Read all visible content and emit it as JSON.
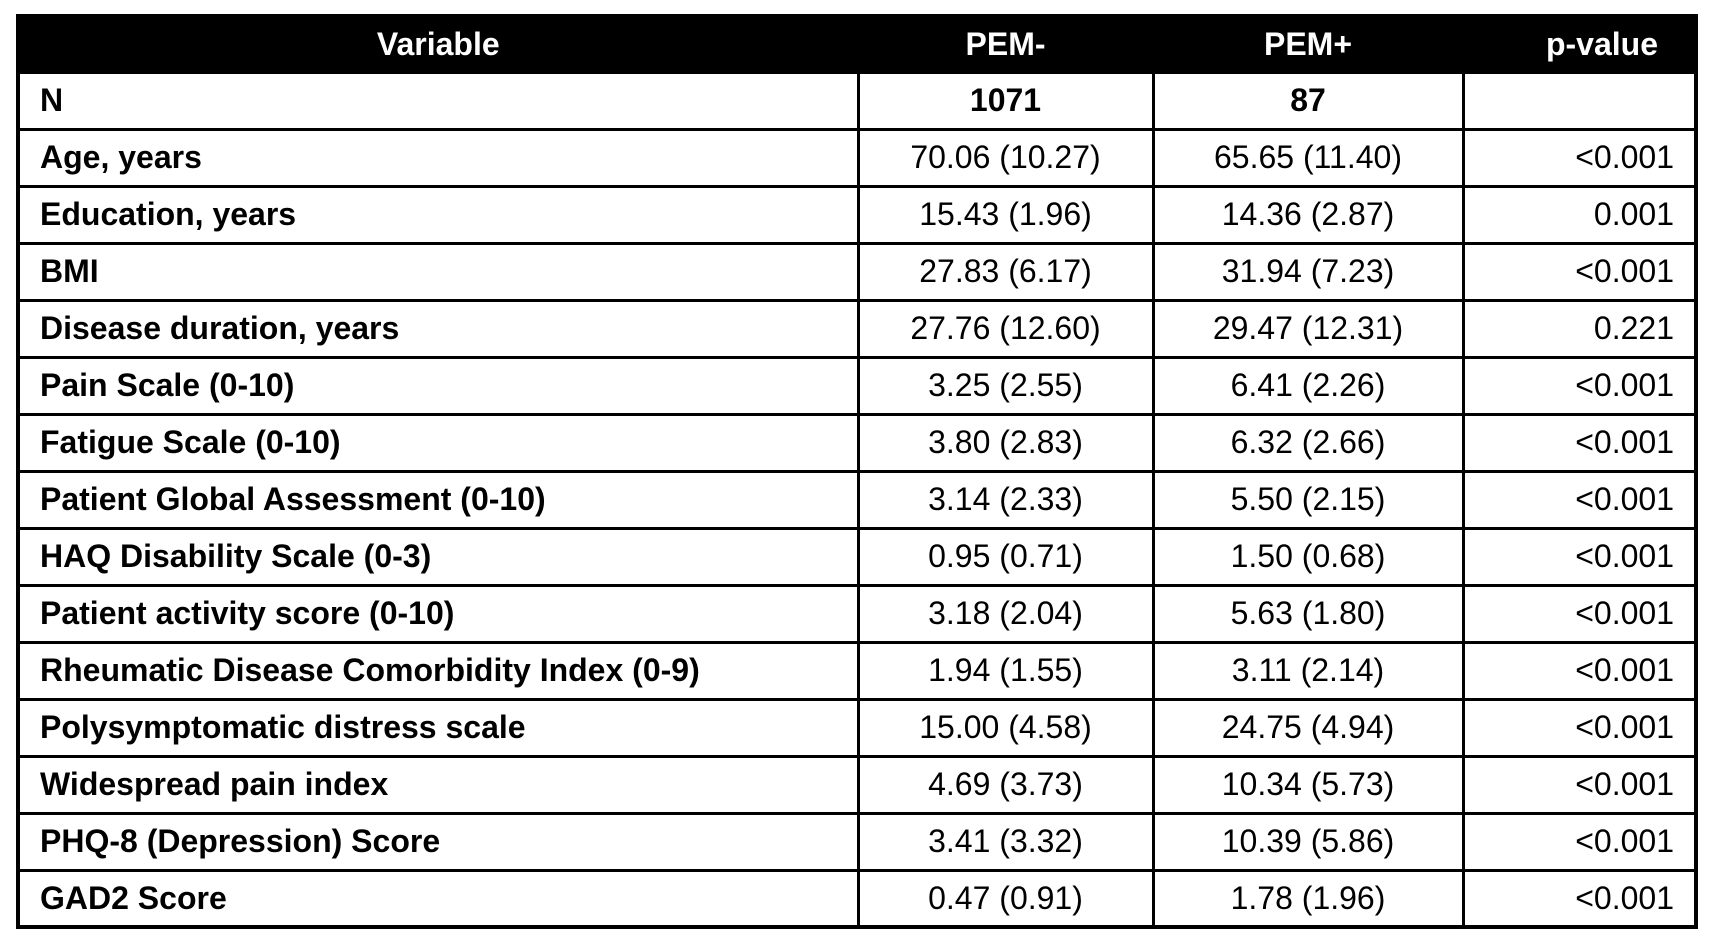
{
  "colors": {
    "header_bg": "#000000",
    "header_text": "#ffffff",
    "border": "#000000",
    "row_bg": "#ffffff",
    "text": "#000000"
  },
  "chart_data": {
    "type": "table",
    "columns": [
      "Variable",
      "PEM-",
      "PEM+",
      "p-value"
    ],
    "rows": [
      {
        "variable": "N",
        "pem_minus": "1071",
        "pem_plus": "87",
        "p_value": "",
        "bold_values": true
      },
      {
        "variable": "Age, years",
        "pem_minus": "70.06 (10.27)",
        "pem_plus": "65.65 (11.40)",
        "p_value": "<0.001"
      },
      {
        "variable": "Education, years",
        "pem_minus": "15.43 (1.96)",
        "pem_plus": "14.36 (2.87)",
        "p_value": "0.001"
      },
      {
        "variable": "BMI",
        "pem_minus": "27.83 (6.17)",
        "pem_plus": "31.94 (7.23)",
        "p_value": "<0.001"
      },
      {
        "variable": "Disease duration, years",
        "pem_minus": "27.76 (12.60)",
        "pem_plus": "29.47 (12.31)",
        "p_value": "0.221"
      },
      {
        "variable": "Pain Scale (0-10)",
        "pem_minus": "3.25 (2.55)",
        "pem_plus": "6.41 (2.26)",
        "p_value": "<0.001"
      },
      {
        "variable": "Fatigue Scale (0-10)",
        "pem_minus": "3.80 (2.83)",
        "pem_plus": "6.32 (2.66)",
        "p_value": "<0.001"
      },
      {
        "variable": "Patient Global Assessment (0-10)",
        "pem_minus": "3.14 (2.33)",
        "pem_plus": "5.50 (2.15)",
        "p_value": "<0.001"
      },
      {
        "variable": "HAQ Disability Scale (0-3)",
        "pem_minus": "0.95 (0.71)",
        "pem_plus": "1.50 (0.68)",
        "p_value": "<0.001"
      },
      {
        "variable": "Patient activity score (0-10)",
        "pem_minus": "3.18 (2.04)",
        "pem_plus": "5.63 (1.80)",
        "p_value": "<0.001"
      },
      {
        "variable": "Rheumatic Disease Comorbidity Index (0-9)",
        "pem_minus": "1.94 (1.55)",
        "pem_plus": "3.11 (2.14)",
        "p_value": "<0.001"
      },
      {
        "variable": "Polysymptomatic distress scale",
        "pem_minus": "15.00 (4.58)",
        "pem_plus": "24.75 (4.94)",
        "p_value": "<0.001"
      },
      {
        "variable": "Widespread pain index",
        "pem_minus": "4.69 (3.73)",
        "pem_plus": "10.34 (5.73)",
        "p_value": "<0.001"
      },
      {
        "variable": "PHQ-8 (Depression) Score",
        "pem_minus": "3.41 (3.32)",
        "pem_plus": "10.39 (5.86)",
        "p_value": "<0.001"
      },
      {
        "variable": "GAD2 Score",
        "pem_minus": "0.47 (0.91)",
        "pem_plus": "1.78 (1.96)",
        "p_value": "<0.001"
      }
    ]
  }
}
